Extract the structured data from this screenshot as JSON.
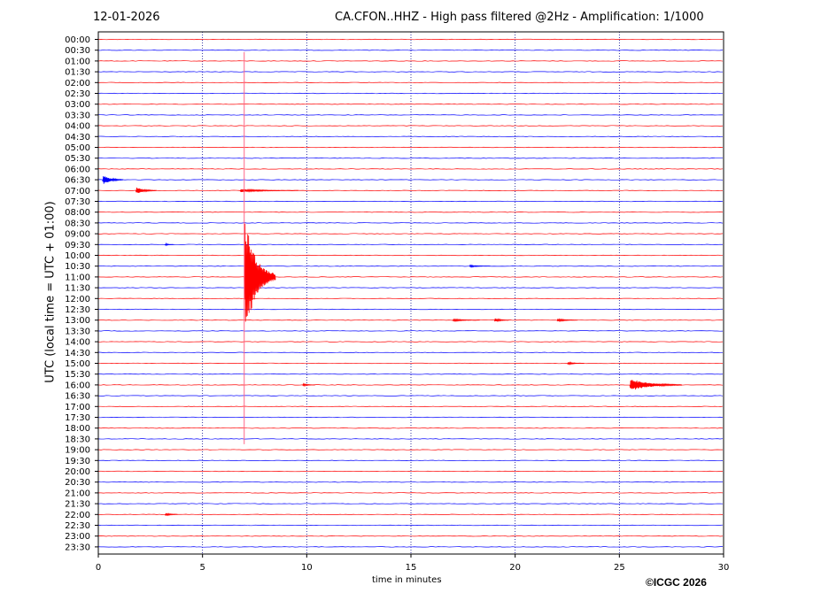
{
  "header": {
    "date": "12-01-2026",
    "title": "CA.CFON..HHZ - High pass filtered @2Hz - Amplification: 1/1000"
  },
  "footer": {
    "copyright": "©ICGC 2026"
  },
  "colors": {
    "trace_a": "#ff0000",
    "trace_b": "#0000ff",
    "event_marker": "#ff6688",
    "grid": "#00008b",
    "frame": "#000000"
  },
  "chart_data": {
    "type": "seismogram",
    "xlabel": "time in minutes",
    "ylabel": "UTC (local time = UTC + 01:00)",
    "xlim": [
      0,
      30
    ],
    "x_ticks": [
      0,
      5,
      10,
      15,
      20,
      25,
      30
    ],
    "x_grid": [
      5,
      10,
      15,
      20,
      25
    ],
    "x_grid_style": "dotted",
    "trace_color_cycle": [
      "#ff0000",
      "#0000ff"
    ],
    "rows": [
      "00:00",
      "00:30",
      "01:00",
      "01:30",
      "02:00",
      "02:30",
      "03:00",
      "03:30",
      "04:00",
      "04:30",
      "05:00",
      "05:30",
      "06:00",
      "06:30",
      "07:00",
      "07:30",
      "08:00",
      "08:30",
      "09:00",
      "09:30",
      "10:00",
      "10:30",
      "11:00",
      "11:30",
      "12:00",
      "12:30",
      "13:00",
      "13:30",
      "14:00",
      "14:30",
      "15:00",
      "15:30",
      "16:00",
      "16:30",
      "17:00",
      "17:30",
      "18:00",
      "18:30",
      "19:00",
      "19:30",
      "20:00",
      "20:30",
      "21:00",
      "21:30",
      "22:00",
      "22:30",
      "23:00",
      "23:30"
    ],
    "event_marker": {
      "minute": 7.0,
      "from_row": "01:00",
      "to_row": "18:30"
    },
    "events": [
      {
        "row": "06:30",
        "minute": 0.2,
        "duration_min": 1.0,
        "amplitude": 0.5
      },
      {
        "row": "07:00",
        "minute": 1.8,
        "duration_min": 1.0,
        "amplitude": 0.35
      },
      {
        "row": "07:00",
        "minute": 6.8,
        "duration_min": 2.8,
        "amplitude": 0.15
      },
      {
        "row": "09:30",
        "minute": 3.2,
        "duration_min": 0.4,
        "amplitude": 0.12
      },
      {
        "row": "10:30",
        "minute": 17.8,
        "duration_min": 1.0,
        "amplitude": 0.1
      },
      {
        "row": "11:00",
        "minute": 7.0,
        "duration_min": 1.5,
        "amplitude": 6.0
      },
      {
        "row": "13:00",
        "minute": 17.0,
        "duration_min": 1.3,
        "amplitude": 0.12
      },
      {
        "row": "13:00",
        "minute": 19.0,
        "duration_min": 0.7,
        "amplitude": 0.2
      },
      {
        "row": "13:00",
        "minute": 22.0,
        "duration_min": 1.0,
        "amplitude": 0.14
      },
      {
        "row": "15:00",
        "minute": 22.5,
        "duration_min": 0.8,
        "amplitude": 0.14
      },
      {
        "row": "16:00",
        "minute": 25.5,
        "duration_min": 2.5,
        "amplitude": 0.6
      },
      {
        "row": "16:00",
        "minute": 9.8,
        "duration_min": 0.6,
        "amplitude": 0.12
      },
      {
        "row": "22:00",
        "minute": 3.2,
        "duration_min": 0.6,
        "amplitude": 0.18
      }
    ]
  }
}
